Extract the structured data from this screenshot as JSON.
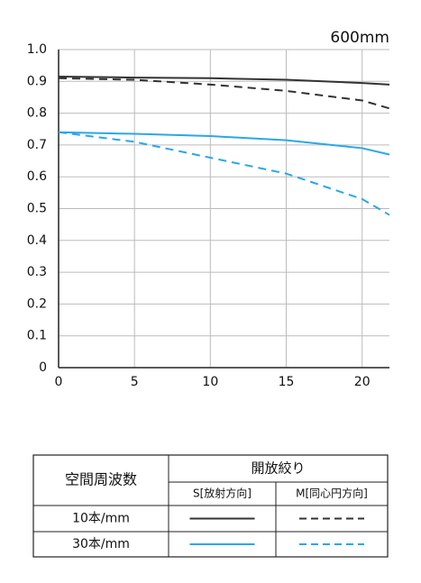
{
  "chart_data": {
    "type": "line",
    "title": "600mm",
    "x": [
      0,
      5,
      10,
      15,
      20,
      21.8
    ],
    "xlim": [
      0,
      21.8
    ],
    "xticks": [
      0,
      5,
      10,
      15,
      20
    ],
    "ylim": [
      0,
      1
    ],
    "yticks": [
      0,
      0.1,
      0.2,
      0.3,
      0.4,
      0.5,
      0.6,
      0.7,
      0.8,
      0.9,
      {
        "value": 1,
        "label": "1.0"
      }
    ],
    "grid": true,
    "series": [
      {
        "color": "#333333",
        "dashed": false,
        "values": [
          0.915,
          0.912,
          0.91,
          0.905,
          0.895,
          0.89
        ]
      },
      {
        "color": "#333333",
        "dashed": true,
        "values": [
          0.91,
          0.905,
          0.89,
          0.87,
          0.84,
          0.815
        ]
      },
      {
        "color": "#2aa7e8",
        "dashed": false,
        "values": [
          0.74,
          0.735,
          0.728,
          0.715,
          0.69,
          0.67
        ]
      },
      {
        "color": "#2aa7e8",
        "dashed": true,
        "values": [
          0.74,
          0.71,
          0.66,
          0.61,
          0.53,
          0.48
        ]
      }
    ],
    "legend": {
      "header": "空間周波数",
      "group": "開放絞り",
      "columns": [
        "S[放射方向]",
        "M[同心円方向]"
      ],
      "rows": [
        "10本/mm",
        "30本/mm"
      ]
    }
  }
}
